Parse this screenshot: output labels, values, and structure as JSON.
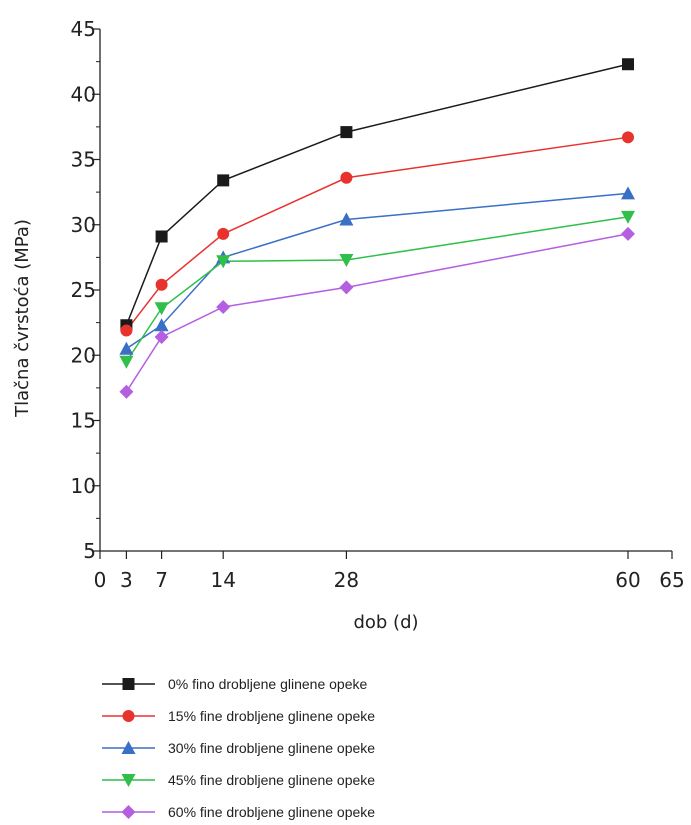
{
  "chart_data": {
    "type": "line",
    "xlabel": "dob (d)",
    "ylabel": "Tlačna čvrstoća (MPa)",
    "xlim": [
      0,
      65
    ],
    "ylim": [
      5,
      45
    ],
    "xticks": [
      0,
      3,
      7,
      14,
      28,
      60,
      65
    ],
    "yticks": [
      5,
      10,
      15,
      20,
      25,
      30,
      35,
      40,
      45
    ],
    "x": [
      3,
      7,
      14,
      28,
      60
    ],
    "grid": false,
    "legend_placement": "bottom",
    "series": [
      {
        "name": "0% fino drobljene glinene opeke",
        "color": "#1a1a1a",
        "marker": "square",
        "values": [
          22.3,
          29.1,
          33.4,
          37.1,
          42.3
        ]
      },
      {
        "name": "15% fine drobljene glinene opeke",
        "color": "#e8322e",
        "marker": "circle",
        "values": [
          21.9,
          25.4,
          29.3,
          33.6,
          36.7
        ]
      },
      {
        "name": "30% fine drobljene glinene opeke",
        "color": "#3a6fc6",
        "marker": "triangle-up",
        "values": [
          20.5,
          22.3,
          27.5,
          30.4,
          32.4
        ]
      },
      {
        "name": "45% fine drobljene glinene opeke",
        "color": "#2fbf4a",
        "marker": "triangle-down",
        "values": [
          19.5,
          23.6,
          27.2,
          27.3,
          30.6
        ]
      },
      {
        "name": "60% fine drobljene glinene opeke",
        "color": "#b45fe0",
        "marker": "diamond",
        "values": [
          17.2,
          21.4,
          23.7,
          25.2,
          29.3
        ]
      }
    ]
  }
}
